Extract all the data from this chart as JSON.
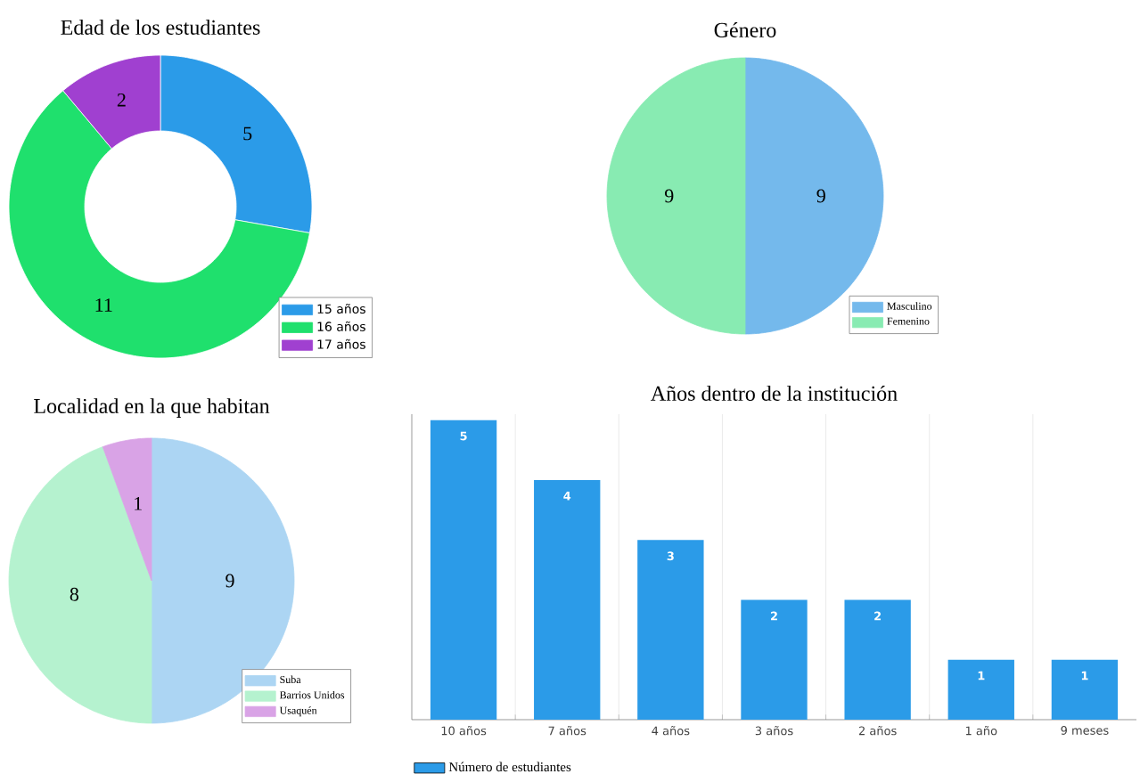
{
  "chart_data": [
    {
      "type": "donut",
      "title": "Edad de los estudiantes",
      "categories": [
        "15 años",
        "16 años",
        "17 años"
      ],
      "values": [
        5,
        11,
        2
      ],
      "colors": [
        "#2b9be8",
        "#1fe06d",
        "#a040d0"
      ],
      "data_labels": true,
      "legend": "bottom right"
    },
    {
      "type": "pie",
      "title": "Género",
      "categories": [
        "Masculino",
        "Femenino"
      ],
      "values": [
        9,
        9
      ],
      "colors": [
        "#74b9ec",
        "#88ebb2"
      ],
      "data_labels": true,
      "legend": "bottom right"
    },
    {
      "type": "pie",
      "title": "Localidad en la que habitan",
      "categories": [
        "Suba",
        "Barrios Unidos",
        "Usaquén"
      ],
      "values": [
        9,
        8,
        1
      ],
      "colors": [
        "#acd5f3",
        "#b5f2cf",
        "#d9a3e6"
      ],
      "data_labels": true,
      "legend": "bottom right"
    },
    {
      "type": "bar",
      "title": "Años dentro de la institución",
      "categories": [
        "10 años",
        "7 años",
        "4 años",
        "3 años",
        "2 años",
        "1 año",
        "9 meses"
      ],
      "series": [
        {
          "name": "Número de estudiantes",
          "color": "#2b9be8",
          "values": [
            5,
            4,
            3,
            2,
            2,
            1,
            1
          ]
        }
      ],
      "ylim": [
        0,
        5.1
      ],
      "data_labels": true,
      "grid": "x",
      "legend": "bottom left"
    }
  ]
}
